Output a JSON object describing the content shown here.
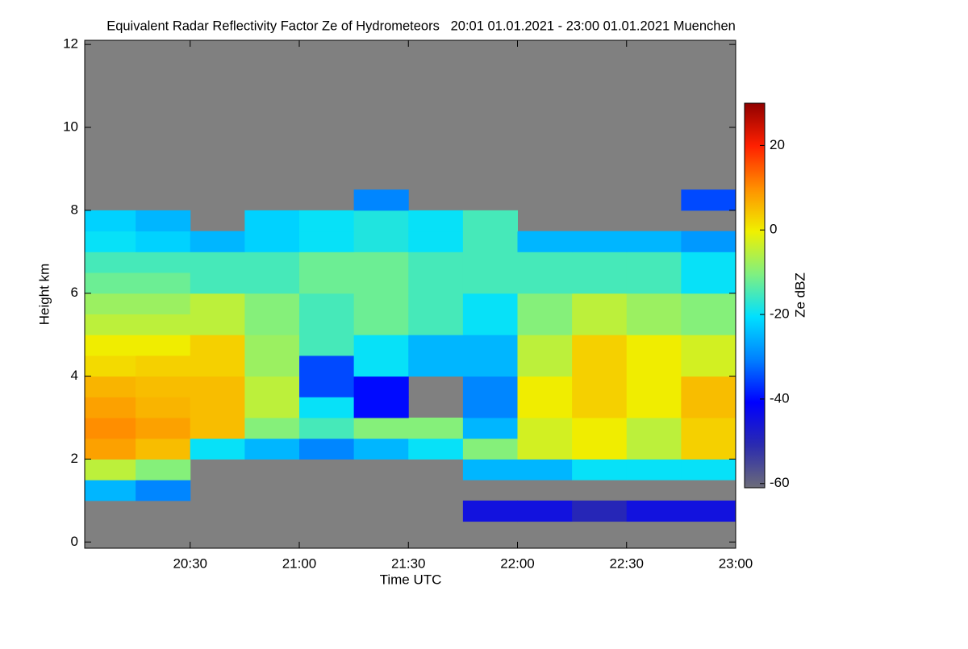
{
  "chart_data": {
    "type": "heatmap",
    "title": "Equivalent Radar Reflectivity Factor Ze of Hydrometeors   20:01 01.01.2021 - 23:00 01.01.2021 Muenchen",
    "x_label": "Time UTC",
    "y_label": "Height km",
    "colorbar_label": "Ze dBZ",
    "xlim": [
      "20:01",
      "23:00"
    ],
    "xticks": [
      "20:30",
      "21:00",
      "21:30",
      "22:00",
      "22:30",
      "23:00"
    ],
    "ylim": [
      -0.15,
      12.1
    ],
    "yticks": [
      0,
      2,
      4,
      6,
      8,
      10,
      12
    ],
    "zlim": [
      -61,
      30
    ],
    "zticks": [
      20,
      0,
      -20,
      -40,
      -60
    ],
    "background": "#808080",
    "colormap": [
      "#6c6c78",
      "#2a2ab0",
      "#0000ff",
      "#0080ff",
      "#00e0ff",
      "#80f080",
      "#f0f000",
      "#ff9000",
      "#ff2000",
      "#900000"
    ],
    "xbins": [
      "20:01",
      "20:15",
      "20:30",
      "20:45",
      "21:00",
      "21:15",
      "21:30",
      "21:45",
      "22:00",
      "22:15",
      "22:30",
      "22:45",
      "23:00"
    ],
    "ybins": [
      0,
      0.5,
      1,
      1.5,
      2,
      2.5,
      3,
      3.5,
      4,
      4.5,
      5,
      5.5,
      6,
      6.5,
      7,
      7.5,
      8,
      8.5
    ],
    "z": [
      [
        null,
        null,
        null,
        null,
        null,
        null,
        null,
        null,
        null,
        null,
        null,
        null
      ],
      [
        null,
        null,
        null,
        null,
        null,
        null,
        null,
        -45,
        -45,
        -50,
        -45,
        -45
      ],
      [
        -25,
        -30,
        null,
        null,
        null,
        null,
        null,
        null,
        null,
        null,
        null,
        null
      ],
      [
        -5,
        -10,
        null,
        null,
        null,
        null,
        null,
        -25,
        -25,
        -20,
        -20,
        -20
      ],
      [
        8,
        5,
        -20,
        -25,
        -30,
        -25,
        -20,
        -10,
        -3,
        0,
        -5,
        3
      ],
      [
        10,
        8,
        5,
        -10,
        -15,
        -10,
        -10,
        -25,
        -3,
        0,
        -5,
        3
      ],
      [
        8,
        6,
        5,
        -5,
        -20,
        -40,
        null,
        -30,
        0,
        3,
        0,
        5
      ],
      [
        6,
        5,
        5,
        -5,
        -35,
        -40,
        null,
        -30,
        0,
        3,
        0,
        5
      ],
      [
        2,
        3,
        3,
        -8,
        -35,
        -20,
        -25,
        -25,
        -5,
        3,
        0,
        -3
      ],
      [
        0,
        0,
        3,
        -8,
        -15,
        -20,
        -25,
        -25,
        -5,
        3,
        0,
        -3
      ],
      [
        -5,
        -5,
        -5,
        -10,
        -15,
        -12,
        -15,
        -20,
        -10,
        -5,
        -8,
        -10
      ],
      [
        -8,
        -8,
        -5,
        -10,
        -15,
        -12,
        -15,
        -20,
        -10,
        -5,
        -8,
        -10
      ],
      [
        -12,
        -12,
        -15,
        -15,
        -12,
        -12,
        -15,
        -15,
        -15,
        -15,
        -15,
        -20
      ],
      [
        -15,
        -15,
        -15,
        -15,
        -12,
        -12,
        -15,
        -15,
        -15,
        -15,
        -15,
        -20
      ],
      [
        -20,
        -22,
        -25,
        -22,
        -20,
        -18,
        -20,
        -15,
        -25,
        -25,
        -25,
        -28
      ],
      [
        -22,
        -25,
        null,
        -22,
        -20,
        -18,
        -20,
        -15,
        null,
        null,
        null,
        null
      ],
      [
        null,
        null,
        null,
        null,
        null,
        -30,
        null,
        null,
        null,
        null,
        null,
        -35
      ]
    ]
  }
}
